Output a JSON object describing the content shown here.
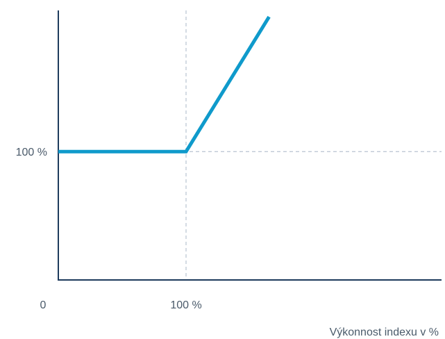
{
  "chart_data": {
    "type": "line",
    "title": "",
    "xlabel": "Výkonnost indexu v %",
    "ylabel": "",
    "xlim": [
      0,
      300
    ],
    "ylim": [
      0,
      210
    ],
    "grid": false,
    "origin_label": "0",
    "x_ticks": [
      {
        "value": 100,
        "label": "100 %"
      }
    ],
    "y_ticks": [
      {
        "value": 100,
        "label": "100 %"
      }
    ],
    "reference_lines": [
      {
        "axis": "x",
        "value": 100,
        "style": "dashed"
      },
      {
        "axis": "y",
        "value": 100,
        "style": "dashed"
      }
    ],
    "series": [
      {
        "x": [
          0,
          100,
          165
        ],
        "y": [
          100,
          100,
          205
        ]
      }
    ],
    "colors": {
      "line": "#0f9acb",
      "axis": "#1d3a5c",
      "reference": "#b7c3d0",
      "text": "#4a5a6a"
    }
  }
}
